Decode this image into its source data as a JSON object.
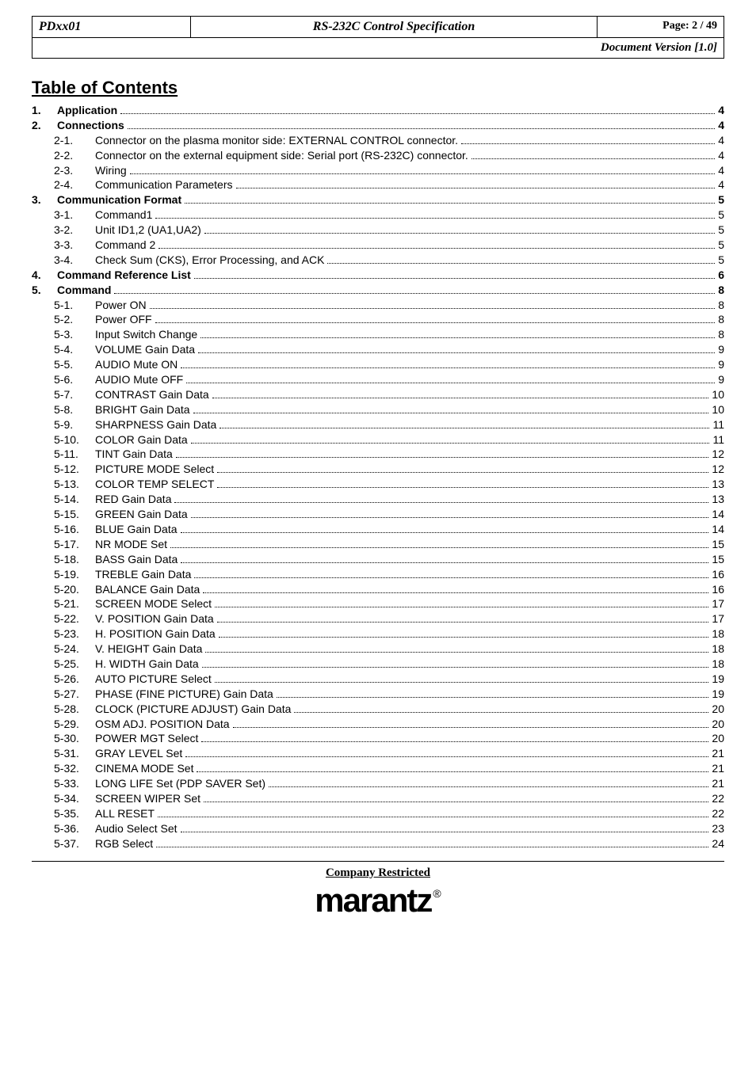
{
  "header": {
    "doc_id": "PDxx01",
    "title": "RS-232C Control Specification",
    "page_label": "Page: 2 / 49",
    "version": "Document Version [1.0]"
  },
  "toc_title": "Table of Contents",
  "toc": [
    {
      "level": 1,
      "num": "1.",
      "label": "Application",
      "page": "4"
    },
    {
      "level": 1,
      "num": "2.",
      "label": "Connections",
      "page": "4"
    },
    {
      "level": 2,
      "num": "2-1.",
      "label": "Connector on the plasma monitor side: EXTERNAL CONTROL connector.",
      "page": "4"
    },
    {
      "level": 2,
      "num": "2-2.",
      "label": "Connector on the external equipment side: Serial port (RS-232C) connector.",
      "page": "4"
    },
    {
      "level": 2,
      "num": "2-3.",
      "label": "Wiring",
      "page": "4"
    },
    {
      "level": 2,
      "num": "2-4.",
      "label": "Communication Parameters",
      "page": "4"
    },
    {
      "level": 1,
      "num": "3.",
      "label": "Communication Format",
      "page": "5"
    },
    {
      "level": 2,
      "num": "3-1.",
      "label": "Command1",
      "page": "5"
    },
    {
      "level": 2,
      "num": "3-2.",
      "label": "Unit ID1,2 (UA1,UA2)",
      "page": "5"
    },
    {
      "level": 2,
      "num": "3-3.",
      "label": "Command 2",
      "page": "5"
    },
    {
      "level": 2,
      "num": "3-4.",
      "label": "Check Sum (CKS), Error Processing, and ACK",
      "page": "5"
    },
    {
      "level": 1,
      "num": "4.",
      "label": "Command Reference List",
      "page": "6"
    },
    {
      "level": 1,
      "num": "5.",
      "label": "Command",
      "page": "8"
    },
    {
      "level": 2,
      "num": "5-1.",
      "label": "Power ON",
      "page": "8"
    },
    {
      "level": 2,
      "num": "5-2.",
      "label": "Power OFF",
      "page": "8"
    },
    {
      "level": 2,
      "num": "5-3.",
      "label": "Input Switch Change",
      "page": "8"
    },
    {
      "level": 2,
      "num": "5-4.",
      "label": "VOLUME Gain Data",
      "page": "9"
    },
    {
      "level": 2,
      "num": "5-5.",
      "label": "AUDIO Mute ON",
      "page": "9"
    },
    {
      "level": 2,
      "num": "5-6.",
      "label": "AUDIO Mute OFF",
      "page": "9"
    },
    {
      "level": 2,
      "num": "5-7.",
      "label": "CONTRAST Gain Data",
      "page": "10"
    },
    {
      "level": 2,
      "num": "5-8.",
      "label": "BRIGHT Gain Data",
      "page": "10"
    },
    {
      "level": 2,
      "num": "5-9.",
      "label": "SHARPNESS Gain Data",
      "page": "11"
    },
    {
      "level": 2,
      "num": "5-10.",
      "label": "COLOR Gain Data",
      "page": "11"
    },
    {
      "level": 2,
      "num": "5-11.",
      "label": "TINT Gain Data",
      "page": "12"
    },
    {
      "level": 2,
      "num": "5-12.",
      "label": "PICTURE MODE Select",
      "page": "12"
    },
    {
      "level": 2,
      "num": "5-13.",
      "label": "COLOR TEMP SELECT",
      "page": "13"
    },
    {
      "level": 2,
      "num": "5-14.",
      "label": "RED Gain Data",
      "page": "13"
    },
    {
      "level": 2,
      "num": "5-15.",
      "label": "GREEN Gain Data",
      "page": "14"
    },
    {
      "level": 2,
      "num": "5-16.",
      "label": "BLUE Gain Data",
      "page": "14"
    },
    {
      "level": 2,
      "num": "5-17.",
      "label": "NR MODE Set",
      "page": "15"
    },
    {
      "level": 2,
      "num": "5-18.",
      "label": "BASS Gain Data",
      "page": "15"
    },
    {
      "level": 2,
      "num": "5-19.",
      "label": "TREBLE Gain Data",
      "page": "16"
    },
    {
      "level": 2,
      "num": "5-20.",
      "label": "BALANCE Gain Data",
      "page": "16"
    },
    {
      "level": 2,
      "num": "5-21.",
      "label": "SCREEN MODE Select",
      "page": "17"
    },
    {
      "level": 2,
      "num": "5-22.",
      "label": "V. POSITION Gain Data",
      "page": "17"
    },
    {
      "level": 2,
      "num": "5-23.",
      "label": "H. POSITION Gain Data",
      "page": "18"
    },
    {
      "level": 2,
      "num": "5-24.",
      "label": "V. HEIGHT Gain Data",
      "page": "18"
    },
    {
      "level": 2,
      "num": "5-25.",
      "label": "H. WIDTH Gain Data",
      "page": "18"
    },
    {
      "level": 2,
      "num": "5-26.",
      "label": "AUTO PICTURE Select",
      "page": "19"
    },
    {
      "level": 2,
      "num": "5-27.",
      "label": "PHASE (FINE PICTURE) Gain Data",
      "page": "19"
    },
    {
      "level": 2,
      "num": "5-28.",
      "label": "CLOCK (PICTURE ADJUST) Gain Data",
      "page": "20"
    },
    {
      "level": 2,
      "num": "5-29.",
      "label": "OSM ADJ. POSITION Data",
      "page": "20"
    },
    {
      "level": 2,
      "num": "5-30.",
      "label": "POWER MGT Select",
      "page": "20"
    },
    {
      "level": 2,
      "num": "5-31.",
      "label": "GRAY LEVEL Set",
      "page": "21"
    },
    {
      "level": 2,
      "num": "5-32.",
      "label": "CINEMA MODE Set",
      "page": "21"
    },
    {
      "level": 2,
      "num": "5-33.",
      "label": "LONG LIFE Set (PDP SAVER Set)",
      "page": "21"
    },
    {
      "level": 2,
      "num": "5-34.",
      "label": "SCREEN WIPER Set",
      "page": "22"
    },
    {
      "level": 2,
      "num": "5-35.",
      "label": "ALL RESET",
      "page": "22"
    },
    {
      "level": 2,
      "num": "5-36.",
      "label": "Audio Select Set",
      "page": "23"
    },
    {
      "level": 2,
      "num": "5-37.",
      "label": "RGB Select",
      "page": "24"
    }
  ],
  "footer": {
    "restricted": "Company Restricted",
    "brand": "marantz",
    "reg": "®"
  }
}
